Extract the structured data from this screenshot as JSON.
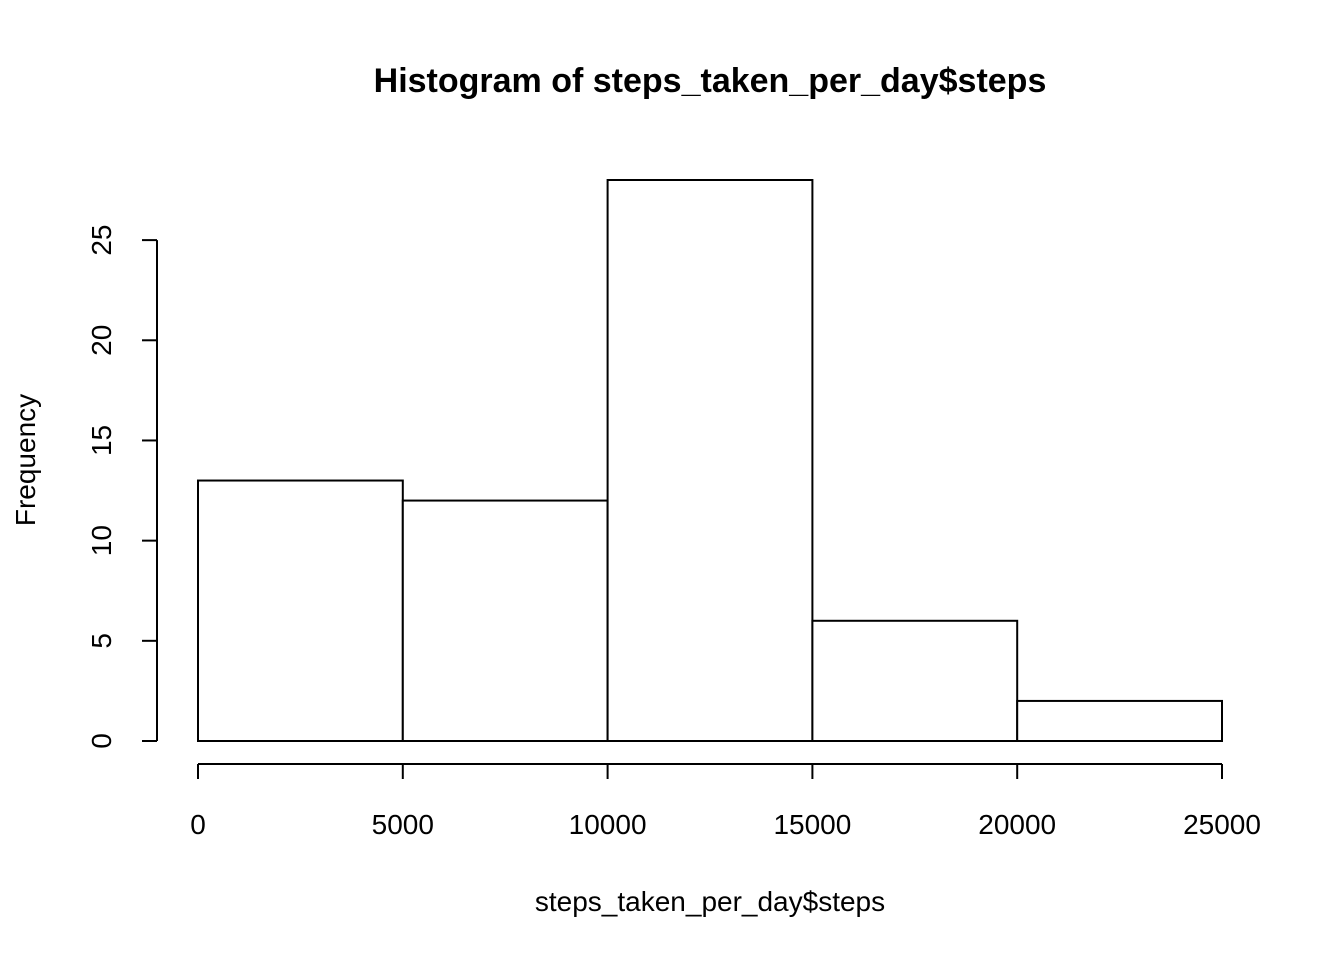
{
  "chart_data": {
    "type": "bar",
    "title": "Histogram of steps_taken_per_day$steps",
    "xlabel": "steps_taken_per_day$steps",
    "ylabel": "Frequency",
    "bins": [
      {
        "from": 0,
        "to": 5000,
        "count": 13
      },
      {
        "from": 5000,
        "to": 10000,
        "count": 12
      },
      {
        "from": 10000,
        "to": 15000,
        "count": 28
      },
      {
        "from": 15000,
        "to": 20000,
        "count": 6
      },
      {
        "from": 20000,
        "to": 25000,
        "count": 2
      }
    ],
    "xlim": [
      0,
      25000
    ],
    "ylim": [
      0,
      28
    ],
    "x_ticks": [
      0,
      5000,
      10000,
      15000,
      20000,
      25000
    ],
    "y_ticks": [
      0,
      5,
      10,
      15,
      20,
      25
    ],
    "grid": false,
    "bar_fill": "#ffffff",
    "bar_stroke": "#000000"
  }
}
